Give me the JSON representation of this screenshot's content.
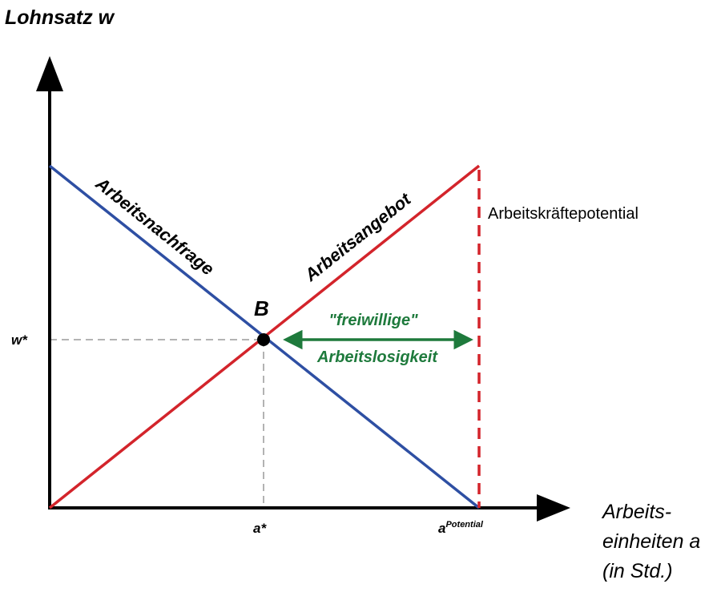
{
  "axes": {
    "y_label": "Lohnsatz w",
    "x_label_lines": [
      "Arbeits-",
      "einheiten a",
      "(in Std.)"
    ]
  },
  "curves": {
    "demand_label": "Arbeitsnachfrage",
    "supply_label": "Arbeitsangebot",
    "potential_label": "Arbeitskräftepotential"
  },
  "equilibrium": {
    "point_label": "B",
    "wage_label": "w*",
    "quantity_label": "a*",
    "potential_base": "a",
    "potential_sup": "Potential"
  },
  "unemployment": {
    "line1": "\"freiwillige\"",
    "line2": "Arbeitslosigkeit"
  },
  "colors": {
    "demand": "#2e4fa3",
    "supply": "#d3242b",
    "arrow": "#1e7a3c",
    "guides": "#9a9a9a",
    "axes": "#000000"
  }
}
